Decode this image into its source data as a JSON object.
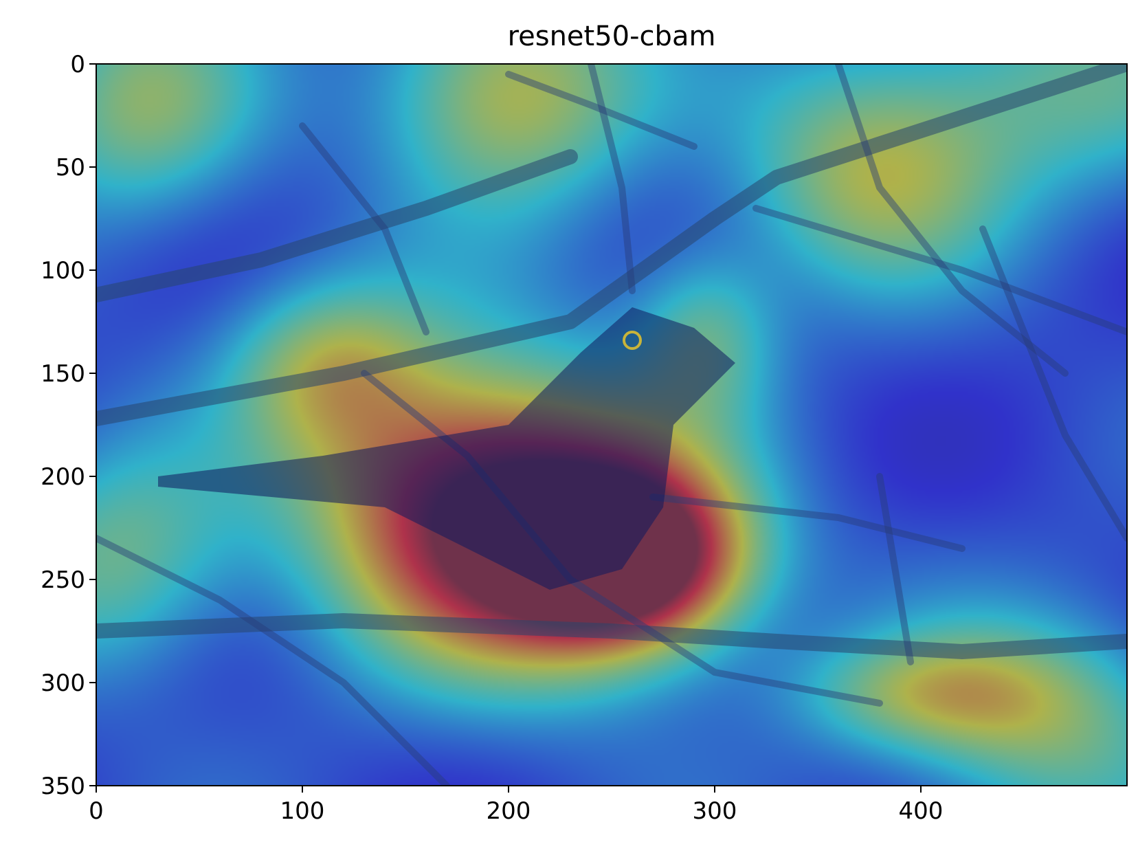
{
  "chart_data": {
    "type": "heatmap",
    "title": "resnet50-cbam",
    "xlabel": "",
    "ylabel": "",
    "xlim": [
      0,
      500
    ],
    "ylim": [
      350,
      0
    ],
    "y_axis_inverted": true,
    "xticks": [
      0,
      100,
      200,
      300,
      400
    ],
    "yticks": [
      0,
      50,
      100,
      150,
      200,
      250,
      300,
      350
    ],
    "colormap": "jet",
    "overlay_alpha": 0.5,
    "image_content": "photo of a bird perched on tree branches with class activation heatmap overlay",
    "hotspots": [
      {
        "x": 258,
        "y": 240,
        "sx": 40,
        "sy": 30,
        "intensity": 1.0
      },
      {
        "x": 215,
        "y": 228,
        "sx": 60,
        "sy": 50,
        "intensity": 0.72
      },
      {
        "x": 168,
        "y": 205,
        "sx": 55,
        "sy": 50,
        "intensity": 0.55
      },
      {
        "x": 200,
        "y": 12,
        "sx": 45,
        "sy": 40,
        "intensity": 0.6
      },
      {
        "x": 375,
        "y": 52,
        "sx": 45,
        "sy": 40,
        "intensity": 0.5
      },
      {
        "x": 112,
        "y": 145,
        "sx": 35,
        "sy": 30,
        "intensity": 0.42
      },
      {
        "x": 295,
        "y": 130,
        "sx": 25,
        "sy": 30,
        "intensity": 0.35
      },
      {
        "x": 400,
        "y": 305,
        "sx": 45,
        "sy": 20,
        "intensity": 0.38
      },
      {
        "x": 20,
        "y": 20,
        "sx": 40,
        "sy": 40,
        "intensity": 0.45
      },
      {
        "x": 460,
        "y": 320,
        "sx": 50,
        "sy": 40,
        "intensity": 0.42
      },
      {
        "x": 10,
        "y": 240,
        "sx": 40,
        "sy": 40,
        "intensity": 0.4
      },
      {
        "x": 470,
        "y": 10,
        "sx": 60,
        "sy": 40,
        "intensity": 0.35
      }
    ],
    "colors": {
      "axes_frame": "#000000",
      "background": "#ffffff"
    }
  }
}
